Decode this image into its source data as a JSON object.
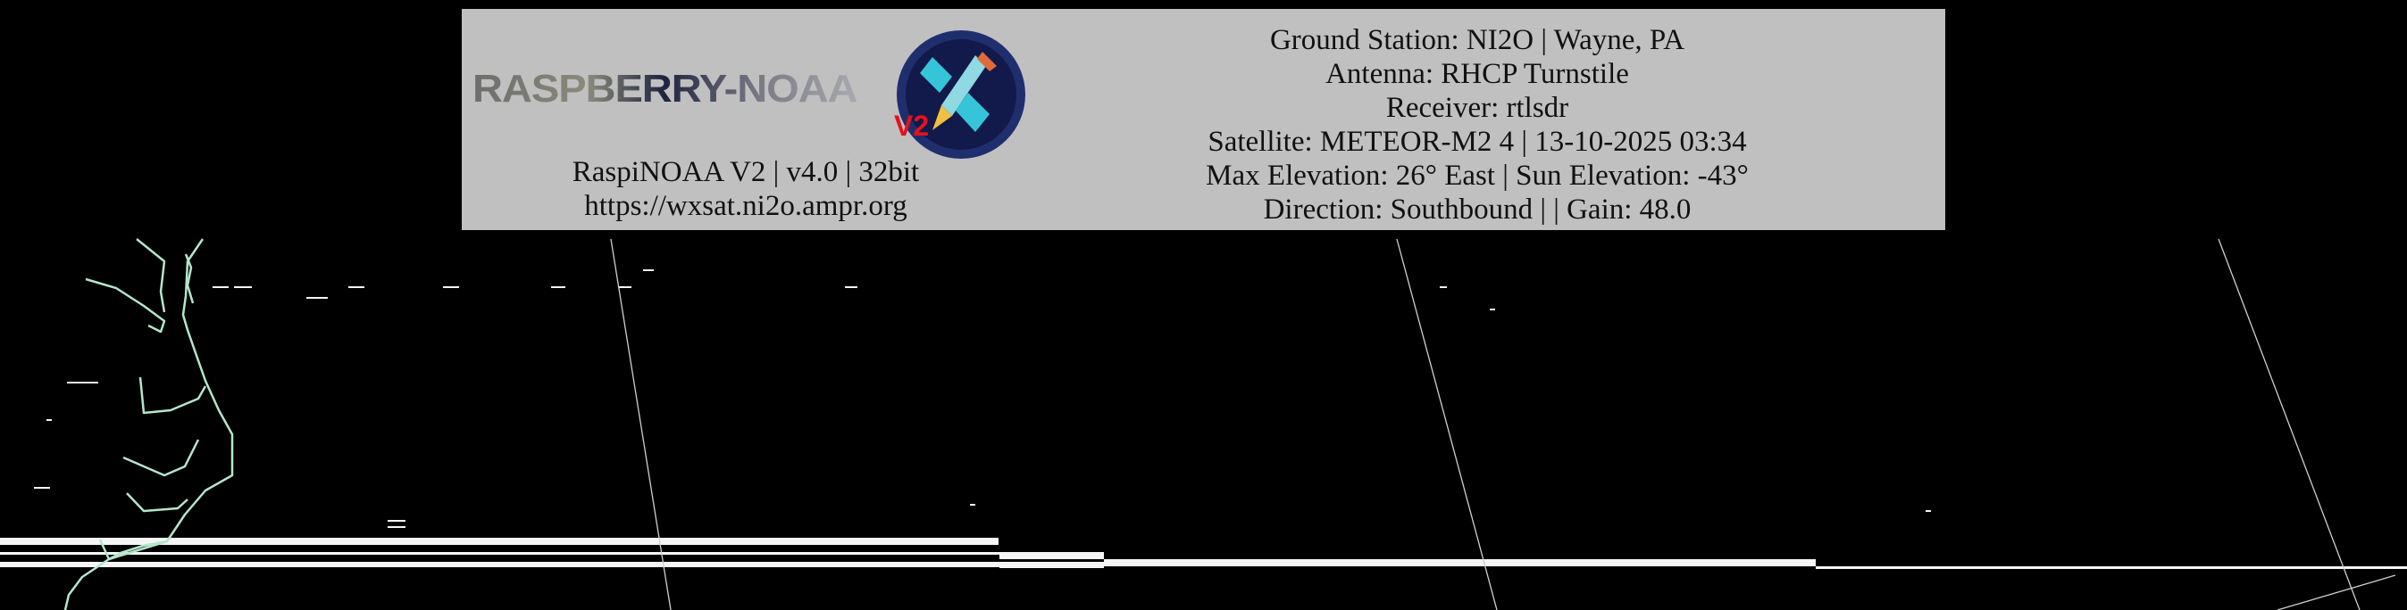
{
  "colors": {
    "background": "#000000",
    "header_bg": "#c0c0c0",
    "coastline": "#b4e6cc",
    "grid": "#d0d0d0",
    "noise": "#f5f5f5",
    "logo_v2": "#e8101c",
    "logo_badge": "#1f2f6e"
  },
  "header": {
    "logo": {
      "text": "RASPBERRY-NOAA",
      "version_mark": "V2",
      "icon": "satellite-icon"
    },
    "software": "RaspiNOAA V2 | v4.0 | 32bit",
    "url": "https://wxsat.ni2o.ampr.org",
    "info": [
      "Ground Station: NI2O | Wayne, PA",
      "Antenna: RHCP Turnstile",
      "Receiver: rtlsdr",
      "Satellite: METEOR-M2 4 | 13-10-2025 03:34",
      "Max Elevation: 26° East | Sun Elevation: -43°",
      "Direction: Southbound | | Gain: 48.0"
    ]
  }
}
